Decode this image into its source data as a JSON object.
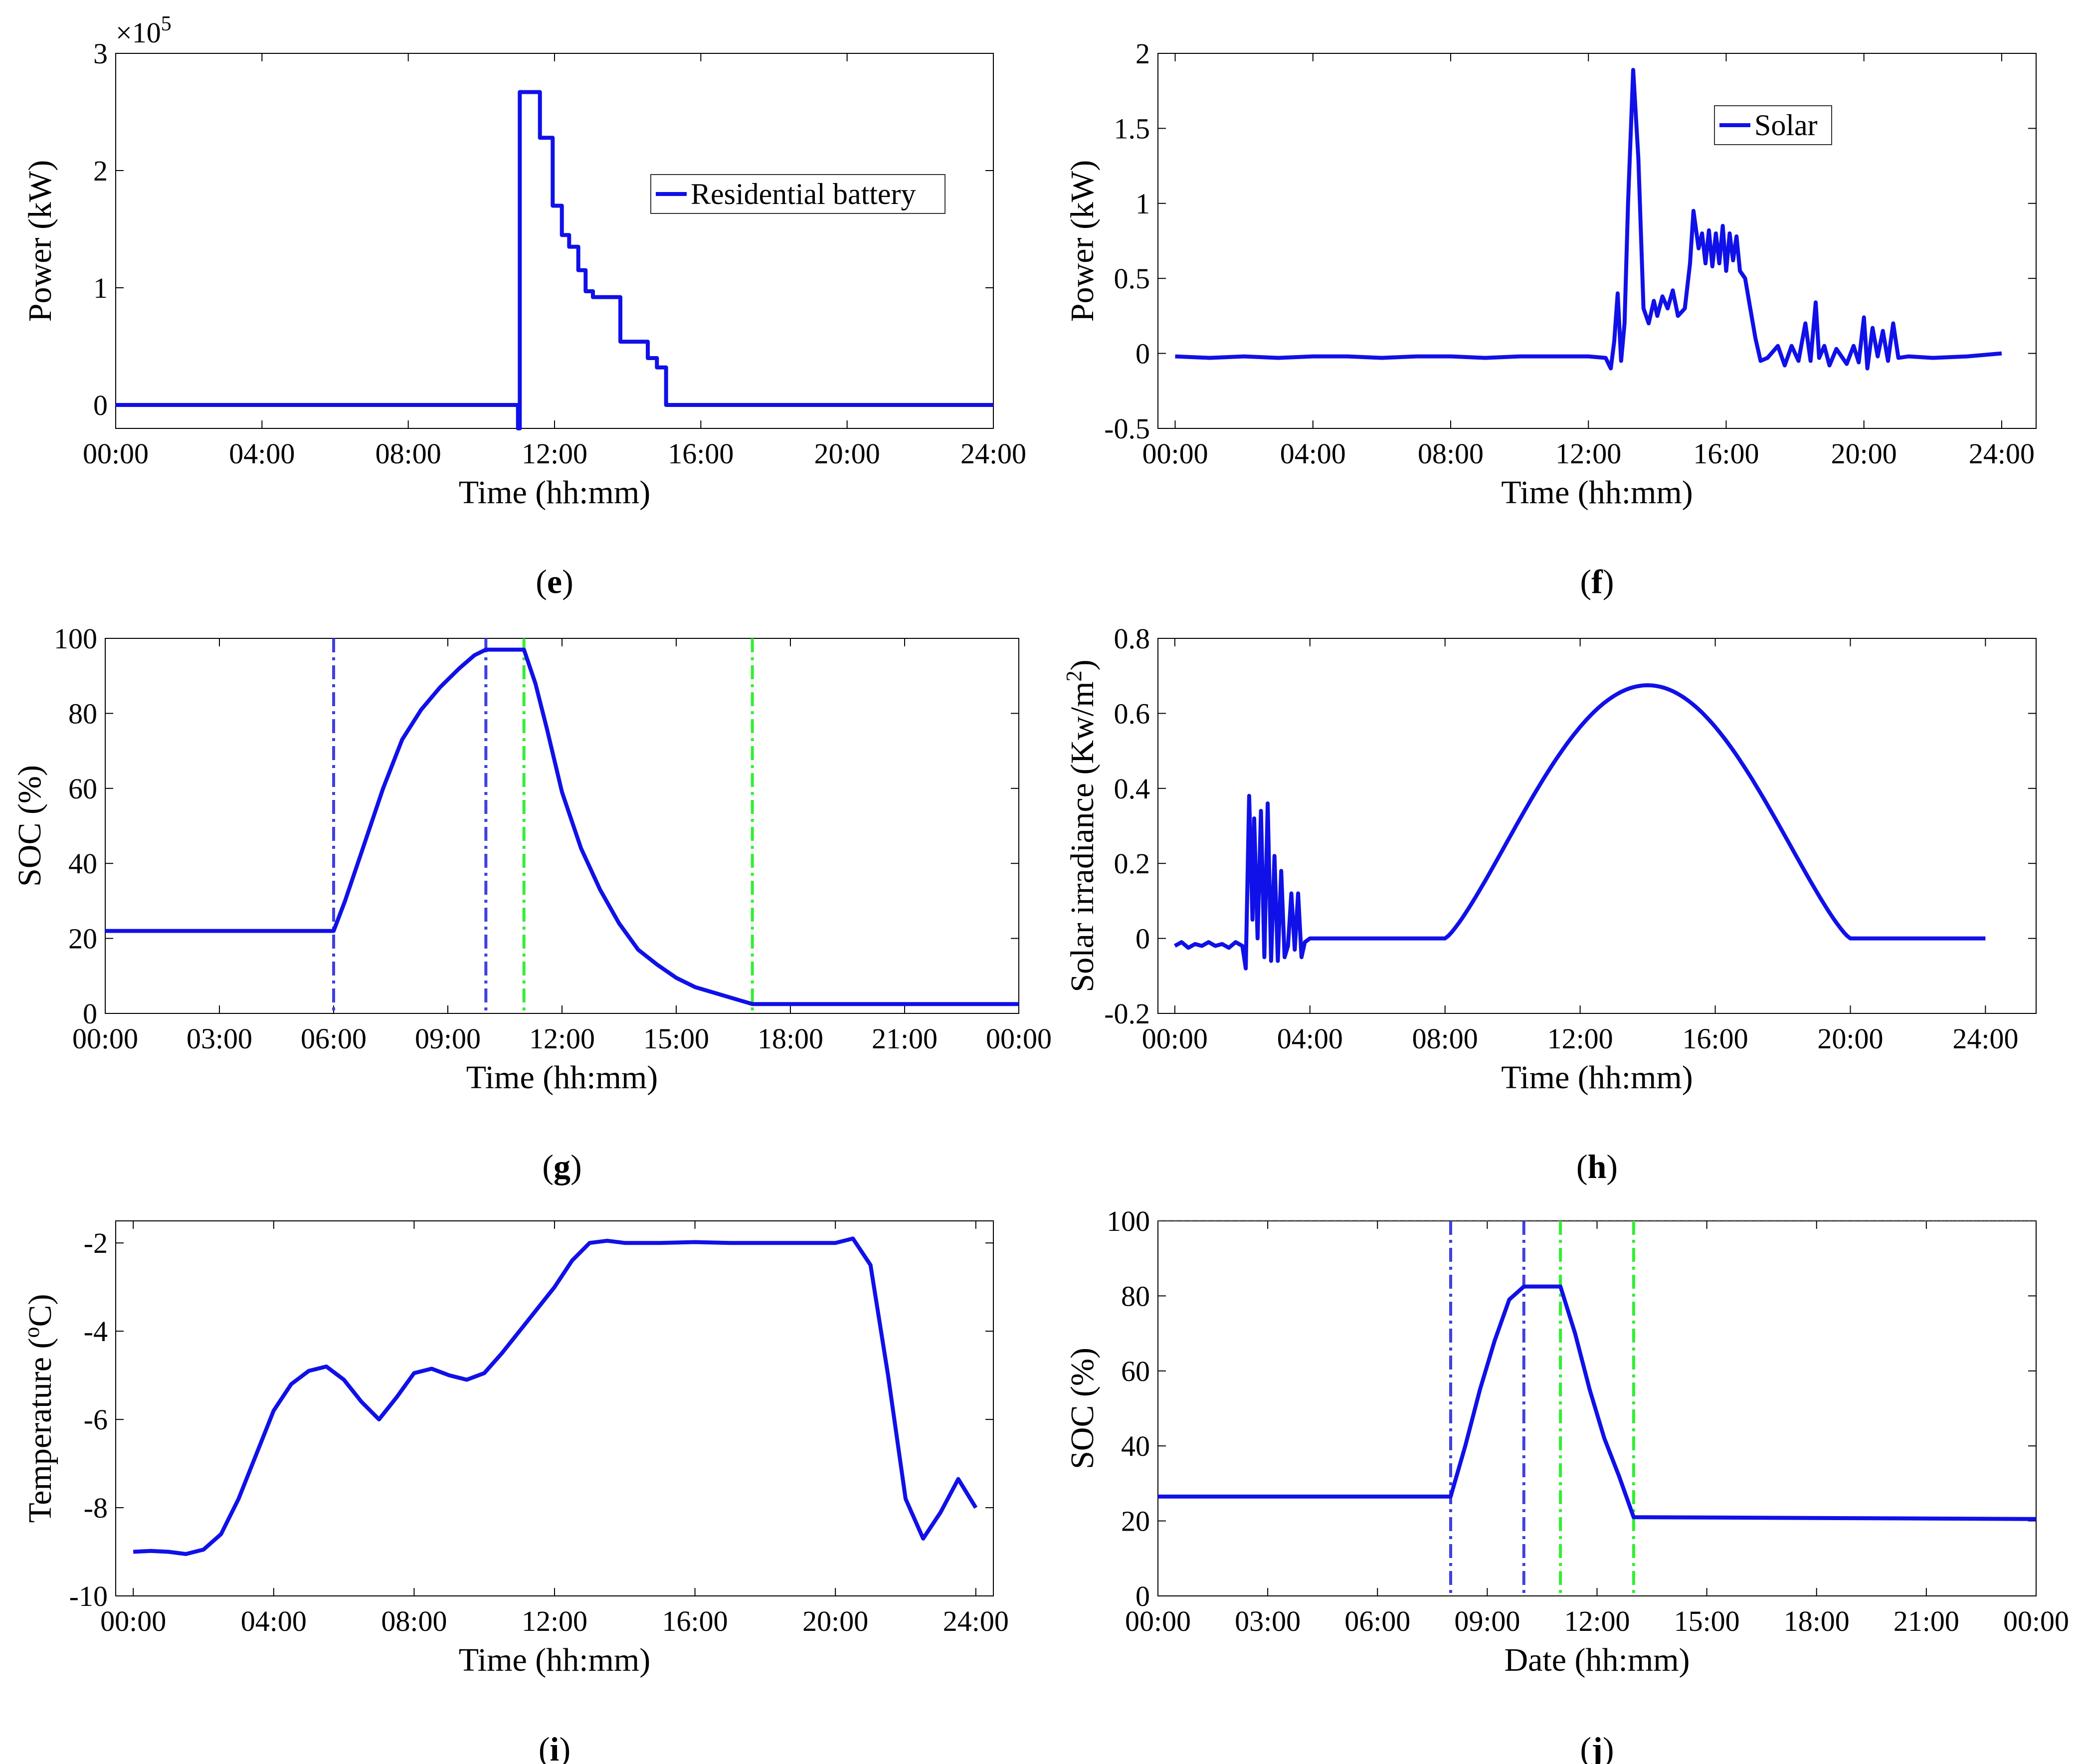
{
  "colors": {
    "series": "#1010e8",
    "vline_blue": "#4040e0",
    "vline_green": "#33ee33",
    "axis": "#000000",
    "ref_line": "#555555"
  },
  "chart_data": [
    {
      "id": "e",
      "type": "line",
      "caption": "e",
      "xlabel": "Time (hh:mm)",
      "ylabel": "Power (kW)",
      "y_multiplier": "×10",
      "y_multiplier_exp": "5",
      "xlim": [
        0,
        24
      ],
      "ylim": [
        -0.2,
        3.0
      ],
      "x_ticks": [
        0,
        4,
        8,
        12,
        16,
        20,
        24
      ],
      "x_tick_labels": [
        "00:00",
        "04:00",
        "08:00",
        "12:00",
        "16:00",
        "20:00",
        "24:00"
      ],
      "y_ticks": [
        0,
        1,
        2,
        3
      ],
      "y_tick_labels": [
        "0",
        "1",
        "2",
        "3"
      ],
      "legend": {
        "label": "Residential battery",
        "position": "upper-right"
      },
      "series": [
        {
          "name": "Residential battery",
          "kind": "points",
          "x": [
            0,
            11.0,
            11.0,
            11.05,
            11.05,
            11.6,
            11.6,
            11.95,
            11.95,
            12.2,
            12.2,
            12.4,
            12.4,
            12.65,
            12.65,
            12.85,
            12.85,
            13.05,
            13.05,
            13.25,
            13.25,
            13.8,
            13.8,
            14.55,
            14.55,
            14.8,
            14.8,
            15.05,
            15.05,
            24
          ],
          "y": [
            0,
            0,
            -0.2,
            -0.2,
            2.67,
            2.67,
            2.28,
            2.28,
            1.7,
            1.7,
            1.45,
            1.45,
            1.35,
            1.35,
            1.15,
            1.15,
            0.97,
            0.97,
            0.92,
            0.92,
            0.92,
            0.92,
            0.54,
            0.54,
            0.4,
            0.4,
            0.32,
            0.32,
            0,
            0
          ]
        }
      ]
    },
    {
      "id": "f",
      "type": "line",
      "caption": "f",
      "xlabel": "Time (hh:mm)",
      "ylabel": "Power (kW)",
      "xlim": [
        -0.5,
        25.0
      ],
      "ylim": [
        -0.5,
        2.0
      ],
      "x_ticks": [
        0,
        4,
        8,
        12,
        16,
        20,
        24
      ],
      "x_tick_labels": [
        "00:00",
        "04:00",
        "08:00",
        "12:00",
        "16:00",
        "20:00",
        "24:00"
      ],
      "y_ticks": [
        -0.5,
        0,
        0.5,
        1,
        1.5,
        2
      ],
      "y_tick_labels": [
        "-0.5",
        "0",
        "0.5",
        "1",
        "1.5",
        "2"
      ],
      "legend": {
        "label": "Solar",
        "position": "upper-center"
      },
      "series": [
        {
          "name": "Solar",
          "kind": "points",
          "x": [
            0,
            1,
            2,
            3,
            4,
            5,
            6,
            7,
            8,
            9,
            10,
            11,
            12,
            12.5,
            12.65,
            12.75,
            12.85,
            12.95,
            13.05,
            13.15,
            13.3,
            13.45,
            13.6,
            13.75,
            13.9,
            14.0,
            14.15,
            14.3,
            14.45,
            14.6,
            14.8,
            14.95,
            15.05,
            15.2,
            15.3,
            15.4,
            15.5,
            15.6,
            15.7,
            15.8,
            15.9,
            16.0,
            16.1,
            16.2,
            16.3,
            16.4,
            16.55,
            16.7,
            16.85,
            17.0,
            17.2,
            17.5,
            17.7,
            17.9,
            18.1,
            18.3,
            18.45,
            18.6,
            18.7,
            18.85,
            19.0,
            19.2,
            19.5,
            19.7,
            19.85,
            20.0,
            20.1,
            20.25,
            20.4,
            20.55,
            20.7,
            20.85,
            21.0,
            21.3,
            22,
            23,
            24
          ],
          "y": [
            -0.02,
            -0.03,
            -0.02,
            -0.03,
            -0.02,
            -0.02,
            -0.03,
            -0.02,
            -0.02,
            -0.03,
            -0.02,
            -0.02,
            -0.02,
            -0.03,
            -0.1,
            0.08,
            0.4,
            -0.05,
            0.2,
            1.0,
            1.89,
            1.3,
            0.3,
            0.2,
            0.35,
            0.25,
            0.38,
            0.3,
            0.42,
            0.25,
            0.3,
            0.6,
            0.95,
            0.7,
            0.8,
            0.6,
            0.82,
            0.58,
            0.8,
            0.6,
            0.85,
            0.55,
            0.8,
            0.62,
            0.78,
            0.55,
            0.5,
            0.3,
            0.1,
            -0.05,
            -0.03,
            0.05,
            -0.08,
            0.05,
            -0.05,
            0.2,
            -0.05,
            0.34,
            -0.03,
            0.05,
            -0.08,
            0.03,
            -0.07,
            0.05,
            -0.06,
            0.24,
            -0.1,
            0.17,
            -0.02,
            0.15,
            -0.05,
            0.2,
            -0.03,
            -0.02,
            -0.03,
            -0.02,
            0.0
          ]
        }
      ]
    },
    {
      "id": "g",
      "type": "line",
      "caption": "g",
      "xlabel": "Time (hh:mm)",
      "ylabel": "SOC (%)",
      "xlim": [
        0,
        24
      ],
      "ylim": [
        0,
        100
      ],
      "x_ticks": [
        0,
        3,
        6,
        9,
        12,
        15,
        18,
        21,
        24
      ],
      "x_tick_labels": [
        "00:00",
        "03:00",
        "06:00",
        "09:00",
        "12:00",
        "15:00",
        "18:00",
        "21:00",
        "00:00"
      ],
      "y_ticks": [
        0,
        20,
        40,
        60,
        80,
        100
      ],
      "y_tick_labels": [
        "0",
        "20",
        "40",
        "60",
        "80",
        "100"
      ],
      "vlines": [
        {
          "x": 6,
          "color": "blue"
        },
        {
          "x": 10,
          "color": "blue"
        },
        {
          "x": 11,
          "color": "green"
        },
        {
          "x": 17,
          "color": "green"
        }
      ],
      "series": [
        {
          "name": "SOC",
          "kind": "points",
          "x": [
            0,
            6,
            6.3,
            6.8,
            7.3,
            7.8,
            8.3,
            8.8,
            9.3,
            9.7,
            10,
            10.6,
            11,
            11.3,
            11.6,
            12,
            12.5,
            13,
            13.5,
            14,
            14.5,
            15,
            15.5,
            16,
            16.5,
            17,
            24
          ],
          "y": [
            22,
            22,
            30,
            45,
            60,
            73,
            81,
            87,
            92,
            95.5,
            97,
            97,
            97,
            88,
            76,
            59,
            44,
            33,
            24,
            17,
            13,
            9.5,
            7,
            5.5,
            4,
            2.5,
            2.5
          ]
        }
      ]
    },
    {
      "id": "h",
      "type": "line",
      "caption": "h",
      "xlabel": "Time (hh:mm)",
      "ylabel": "Solar  irradiance (Kw/m",
      "ylabel_sup": "2",
      "ylabel_end": ")",
      "xlim": [
        -0.5,
        25.5
      ],
      "ylim": [
        -0.2,
        0.8
      ],
      "x_ticks": [
        0,
        4,
        8,
        12,
        16,
        20,
        24
      ],
      "x_tick_labels": [
        "00:00",
        "04:00",
        "08:00",
        "12:00",
        "16:00",
        "20:00",
        "24:00"
      ],
      "y_ticks": [
        -0.2,
        0,
        0.2,
        0.4,
        0.6,
        0.8
      ],
      "y_tick_labels": [
        "-0.2",
        "0",
        "0.2",
        "0.4",
        "0.6",
        "0.8"
      ],
      "series": [
        {
          "name": "Solar irradiance",
          "kind": "sequence",
          "parts": [
            {
              "x": [
                0,
                0.2,
                0.4,
                0.6,
                0.8,
                1.0,
                1.2,
                1.4,
                1.6,
                1.8,
                2.0,
                2.1,
                2.2,
                2.3,
                2.35,
                2.45,
                2.55,
                2.65,
                2.75,
                2.85,
                2.95,
                3.05,
                3.15,
                3.25,
                3.35,
                3.45,
                3.55,
                3.65,
                3.75,
                3.85,
                4.0
              ],
              "y": [
                -0.02,
                -0.01,
                -0.025,
                -0.015,
                -0.02,
                -0.01,
                -0.02,
                -0.015,
                -0.025,
                -0.01,
                -0.02,
                -0.08,
                0.38,
                0.05,
                0.32,
                0.0,
                0.34,
                -0.05,
                0.36,
                -0.06,
                0.22,
                -0.06,
                0.18,
                -0.05,
                -0.02,
                0.12,
                -0.03,
                0.12,
                -0.05,
                -0.01,
                0.0
              ]
            },
            {
              "fn": "bell",
              "x_start": 4.0,
              "x_rise": 8.0,
              "x_fall": 20.0,
              "x_end": 24.0,
              "peak": 0.675
            }
          ]
        }
      ]
    },
    {
      "id": "i",
      "type": "line",
      "caption": "i",
      "xlabel": "Time (hh:mm)",
      "ylabel": "Temperature (",
      "ylabel_sup": "o",
      "ylabel_end": "C)",
      "xlim": [
        -0.5,
        24.5
      ],
      "ylim": [
        -10,
        -1.5
      ],
      "x_ticks": [
        0,
        4,
        8,
        12,
        16,
        20,
        24
      ],
      "x_tick_labels": [
        "00:00",
        "04:00",
        "08:00",
        "12:00",
        "16:00",
        "20:00",
        "24:00"
      ],
      "y_ticks": [
        -10,
        -8,
        -6,
        -4,
        -2
      ],
      "y_tick_labels": [
        "-10",
        "-8",
        "-6",
        "-4",
        "-2"
      ],
      "series": [
        {
          "name": "Temperature",
          "kind": "points",
          "x": [
            0,
            0.5,
            1,
            1.5,
            2,
            2.5,
            3,
            3.5,
            4,
            4.5,
            5,
            5.5,
            6,
            6.5,
            7,
            7.5,
            8,
            8.5,
            9,
            9.5,
            10,
            10.5,
            11,
            12,
            12.5,
            13,
            13.5,
            14,
            15,
            16,
            17,
            18,
            19,
            20,
            20.5,
            21,
            21.5,
            22,
            22.5,
            23,
            23.5,
            24
          ],
          "y": [
            -9.0,
            -8.98,
            -9.0,
            -9.05,
            -8.95,
            -8.6,
            -7.8,
            -6.8,
            -5.8,
            -5.2,
            -4.9,
            -4.8,
            -5.1,
            -5.6,
            -6.0,
            -5.5,
            -4.95,
            -4.85,
            -5.0,
            -5.1,
            -4.95,
            -4.5,
            -4.0,
            -3.0,
            -2.4,
            -2.0,
            -1.95,
            -2.0,
            -2.0,
            -1.98,
            -2.0,
            -2.0,
            -2.0,
            -2.0,
            -1.9,
            -2.5,
            -5.0,
            -7.8,
            -8.7,
            -8.1,
            -7.35,
            -8.0
          ]
        }
      ]
    },
    {
      "id": "j",
      "type": "line",
      "caption": "j",
      "xlabel": "Date (hh:mm)",
      "ylabel": "SOC (%)",
      "xlim": [
        0,
        24
      ],
      "ylim": [
        0,
        100
      ],
      "x_ticks": [
        0,
        3,
        6,
        9,
        12,
        15,
        18,
        21,
        24
      ],
      "x_tick_labels": [
        "00:00",
        "03:00",
        "06:00",
        "09:00",
        "12:00",
        "15:00",
        "18:00",
        "21:00",
        "00:00"
      ],
      "y_ticks": [
        0,
        20,
        40,
        60,
        80,
        100
      ],
      "y_tick_labels": [
        "0",
        "20",
        "40",
        "60",
        "80",
        "100"
      ],
      "hline": 100,
      "vlines": [
        {
          "x": 8,
          "color": "blue"
        },
        {
          "x": 10,
          "color": "blue"
        },
        {
          "x": 11,
          "color": "green"
        },
        {
          "x": 13,
          "color": "green"
        }
      ],
      "series": [
        {
          "name": "SOC",
          "kind": "points",
          "x": [
            0,
            8,
            8.4,
            8.8,
            9.2,
            9.6,
            10,
            11,
            11.4,
            11.8,
            12.2,
            12.6,
            13,
            24
          ],
          "y": [
            26.5,
            26.5,
            40,
            55,
            68,
            79,
            82.5,
            82.5,
            70,
            55,
            42,
            32,
            21,
            20.5
          ]
        }
      ]
    }
  ]
}
